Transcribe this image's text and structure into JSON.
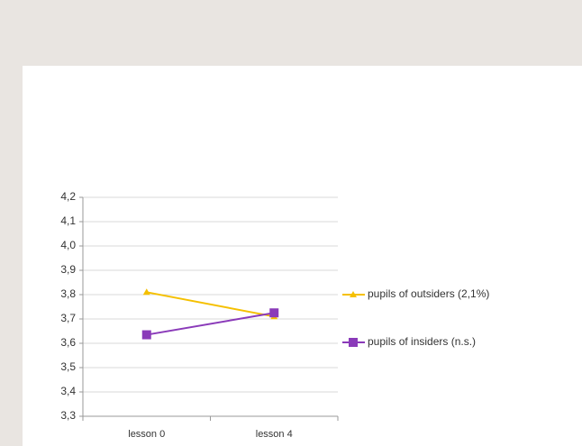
{
  "chart_data": {
    "type": "line",
    "categories": [
      "lesson 0",
      "lesson 4"
    ],
    "series": [
      {
        "name": "pupils of outsiders (2,1%)",
        "color": "#f5c000",
        "marker": "triangle",
        "values": [
          3.81,
          3.71
        ]
      },
      {
        "name": "pupils of insiders (n.s.)",
        "color": "#8a3ab9",
        "marker": "square",
        "values": [
          3.635,
          3.725
        ]
      }
    ],
    "ylim": [
      3.3,
      4.2
    ],
    "yticks": [
      {
        "value": 3.3,
        "label": "3,3"
      },
      {
        "value": 3.4,
        "label": "3,4"
      },
      {
        "value": 3.5,
        "label": "3,5"
      },
      {
        "value": 3.6,
        "label": "3,6"
      },
      {
        "value": 3.7,
        "label": "3,7"
      },
      {
        "value": 3.8,
        "label": "3,8"
      },
      {
        "value": 3.9,
        "label": "3,9"
      },
      {
        "value": 4.0,
        "label": "4,0"
      },
      {
        "value": 4.1,
        "label": "4,1"
      },
      {
        "value": 4.2,
        "label": "4,2"
      }
    ],
    "grid": true,
    "legend": "right"
  }
}
